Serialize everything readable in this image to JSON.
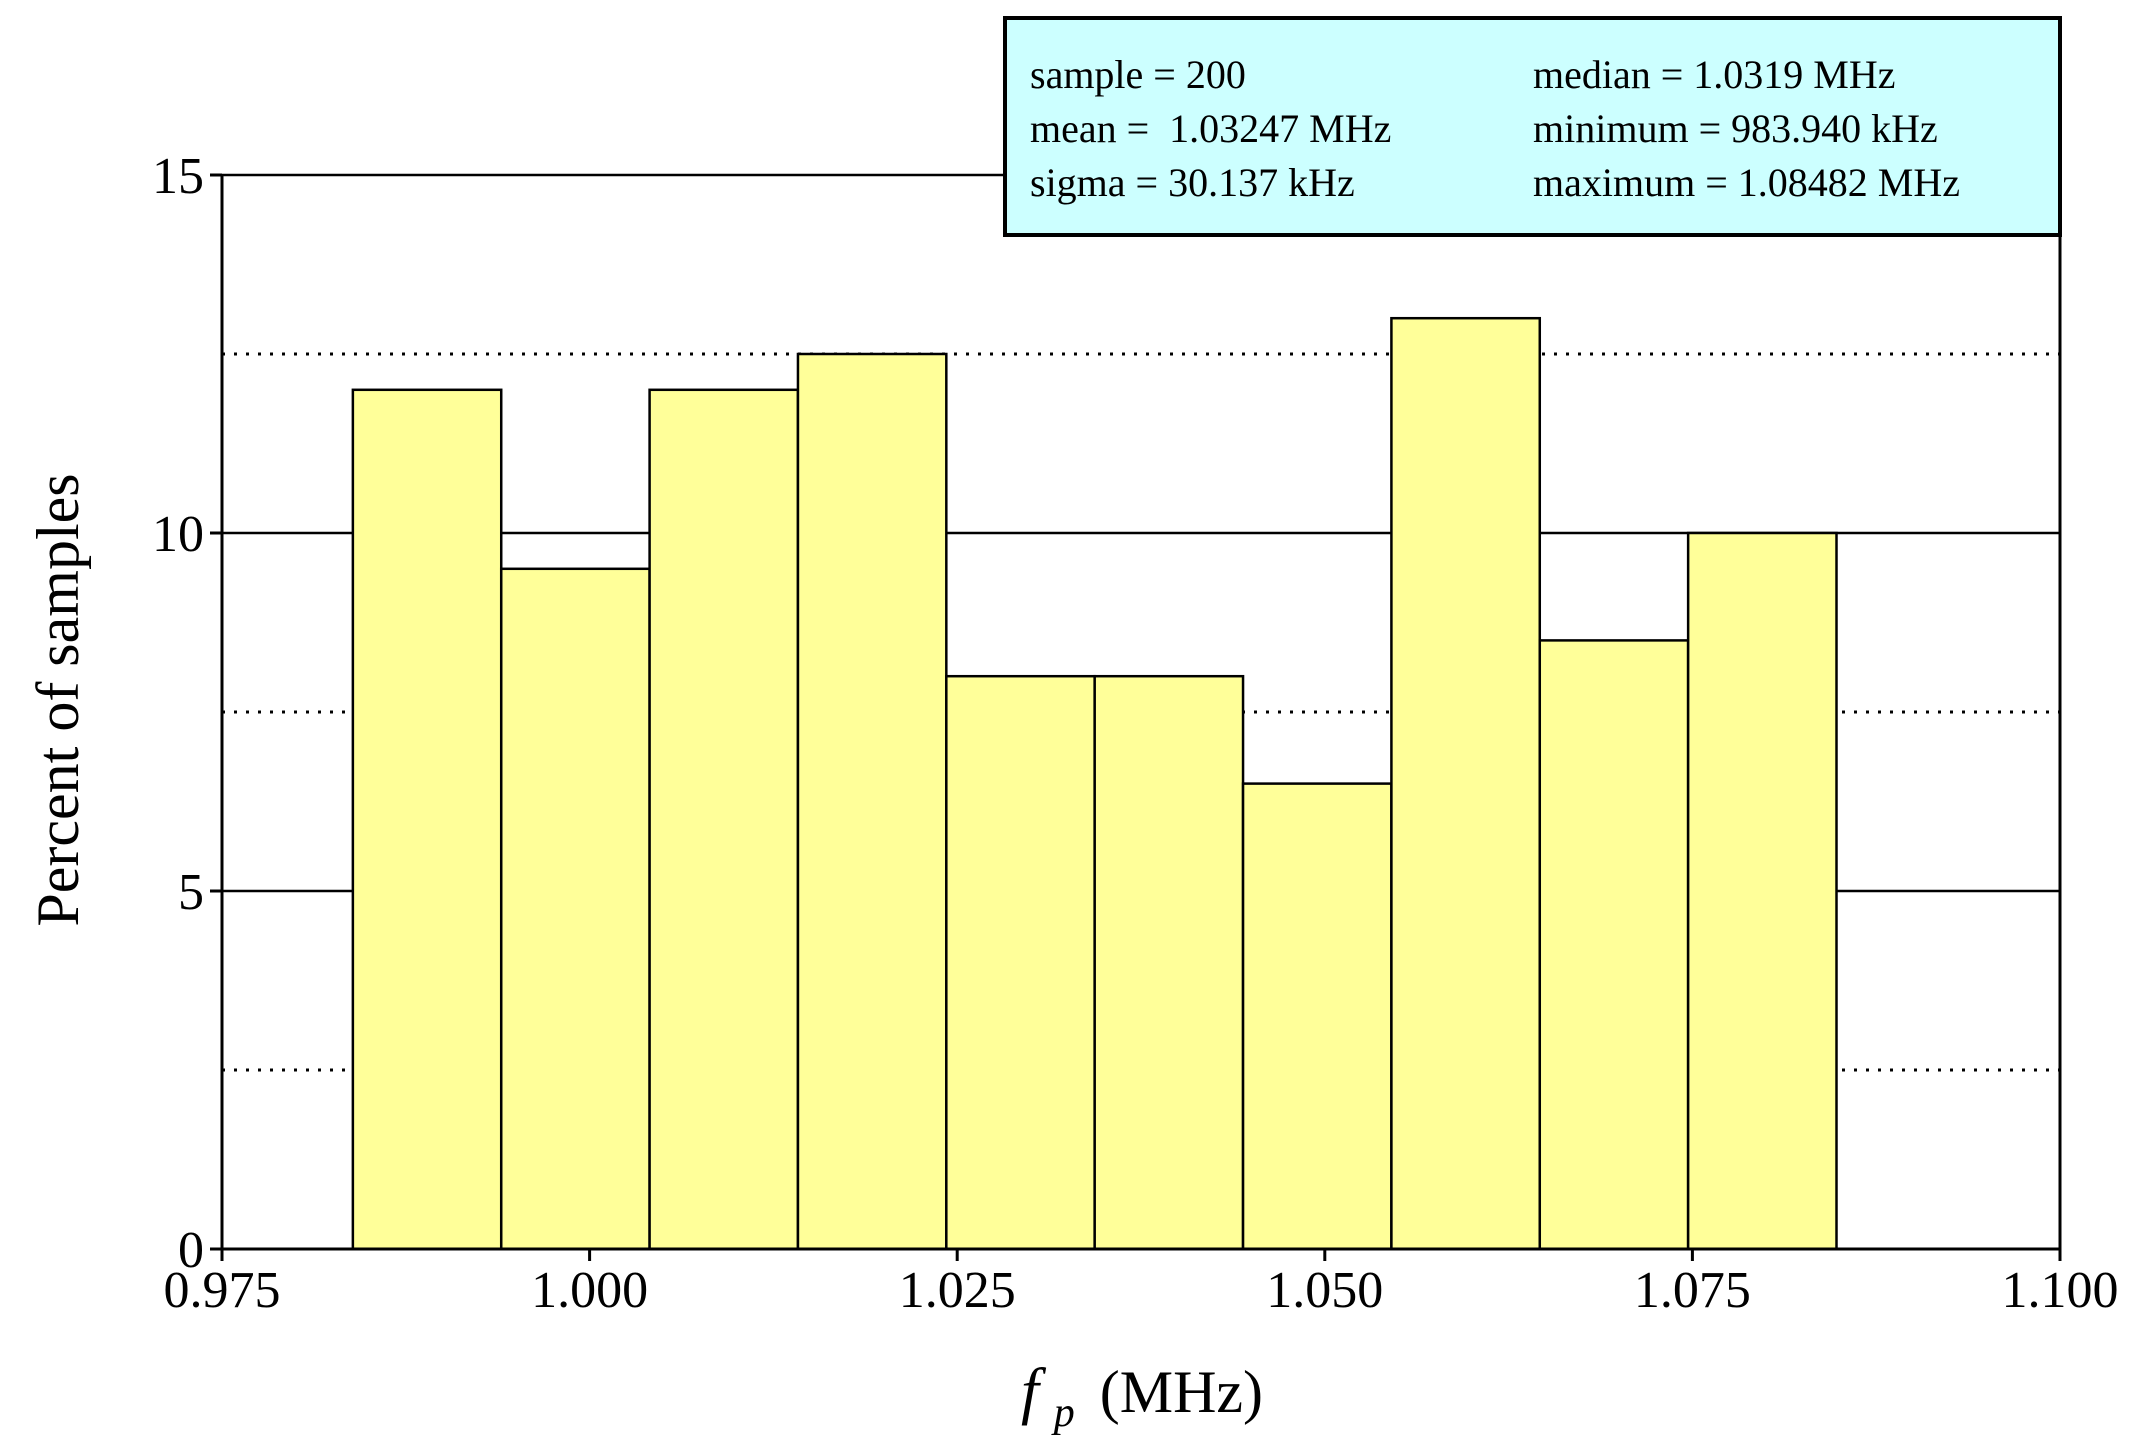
{
  "chart_data": {
    "type": "bar",
    "title": "",
    "xlabel": "",
    "ylabel": "Percent of samples",
    "x_title": {
      "symbol": "f",
      "subscript": "p",
      "unit": "(MHz)"
    },
    "bin_edges": [
      0.9839,
      0.99399,
      1.00408,
      1.01417,
      1.02426,
      1.03435,
      1.04444,
      1.05453,
      1.06462,
      1.07471,
      1.0848
    ],
    "values": [
      12,
      9.5,
      12,
      12.5,
      8,
      8,
      6.5,
      13,
      8.5,
      10
    ],
    "xlim": [
      0.975,
      1.1
    ],
    "ylim": [
      0,
      15
    ],
    "x_ticks": [
      0.975,
      1.0,
      1.025,
      1.05,
      1.075,
      1.1
    ],
    "x_tick_labels": [
      "0.975",
      "1.000",
      "1.025",
      "1.050",
      "1.075",
      "1.100"
    ],
    "y_ticks": [
      0,
      5,
      10,
      15
    ],
    "y_tick_labels": [
      "0",
      "5",
      "10",
      "15"
    ],
    "grid_major": [
      5,
      10,
      15
    ],
    "grid_minor_dotted": [
      2.5,
      7.5,
      12.5
    ],
    "bar_color": "#ffff99",
    "box_color": "#ccffff",
    "stats": {
      "left": [
        "sample = 200",
        "mean =  1.03247 MHz",
        "sigma = 30.137 kHz"
      ],
      "right": [
        "median = 1.0319 MHz",
        "minimum = 983.940 kHz",
        "maximum = 1.08482 MHz"
      ]
    }
  }
}
